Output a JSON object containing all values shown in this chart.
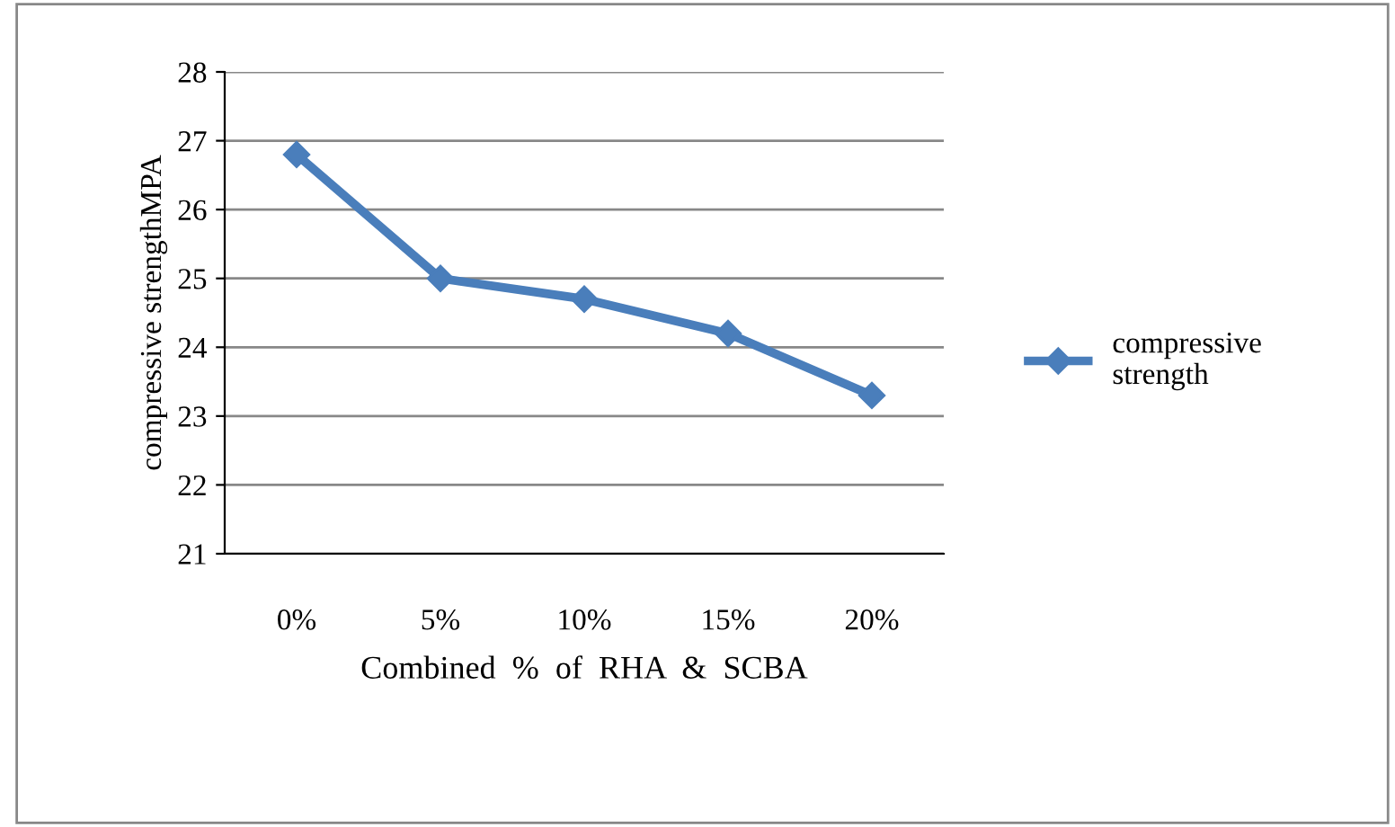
{
  "chart_data": {
    "type": "line",
    "xlabel": "Combined  %  of  RHA  &  SCBA",
    "ylabel": "compressive strengthMPA",
    "categories": [
      "0%",
      "5%",
      "10%",
      "15%",
      "20%"
    ],
    "series": [
      {
        "name": "compressive\nstrength",
        "color": "#4a7ebb",
        "values": [
          26.8,
          25.0,
          24.7,
          24.2,
          23.3
        ]
      }
    ],
    "ylim": [
      21,
      28
    ],
    "yticks": [
      21,
      22,
      23,
      24,
      25,
      26,
      27,
      28
    ],
    "grid": "y",
    "legend": "right",
    "marker": "diamond",
    "line_style": "solid"
  }
}
